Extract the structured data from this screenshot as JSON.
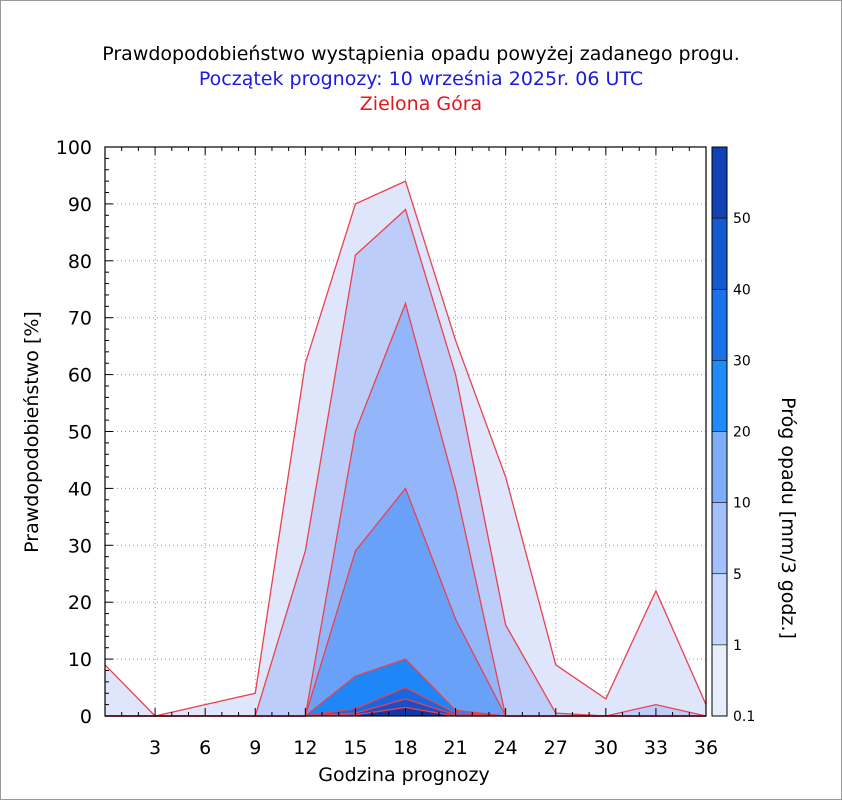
{
  "chart_data": {
    "type": "area",
    "title": "Prawdopodobieństwo wystąpienia opadu powyżej zadanego progu.",
    "subtitle": "Początek prognozy: 10 września 2025r. 06 UTC",
    "location": "Zielona Góra",
    "xlabel": "Godzina prognozy",
    "ylabel": "Prawdopodobieństwo [%]",
    "colorbar_label": "Próg opadu [mm/3 godz.]",
    "xlim": [
      0,
      36
    ],
    "ylim": [
      0,
      100
    ],
    "x_ticks": [
      3,
      6,
      9,
      12,
      15,
      18,
      21,
      24,
      27,
      30,
      33,
      36
    ],
    "y_ticks": [
      0,
      10,
      20,
      30,
      40,
      50,
      60,
      70,
      80,
      90,
      100
    ],
    "x": [
      0,
      3,
      6,
      9,
      12,
      15,
      18,
      21,
      24,
      27,
      30,
      33,
      36
    ],
    "series": [
      {
        "name": "0.1",
        "color": "#dfe6fb",
        "values": [
          9,
          0,
          2,
          4,
          62,
          90,
          94,
          66,
          42,
          9,
          3,
          22,
          2
        ]
      },
      {
        "name": "1",
        "color": "#bccdfa",
        "values": [
          0,
          0,
          0,
          0,
          29,
          81,
          89,
          60,
          16,
          0.5,
          0,
          2,
          0
        ]
      },
      {
        "name": "5",
        "color": "#93b5fa",
        "values": [
          0,
          0,
          0,
          0,
          0,
          50,
          72.5,
          40,
          0,
          0,
          0,
          0,
          0
        ]
      },
      {
        "name": "10",
        "color": "#69a1f9",
        "values": [
          0,
          0,
          0,
          0,
          0,
          29,
          40,
          17,
          0,
          0,
          0,
          0,
          0
        ]
      },
      {
        "name": "20",
        "color": "#1e86f6",
        "values": [
          0,
          0,
          0,
          0,
          0,
          7,
          10,
          1,
          0,
          0,
          0,
          0,
          0
        ]
      },
      {
        "name": "30",
        "color": "#1a66e0",
        "values": [
          0,
          0,
          0,
          0,
          0,
          1.3,
          5,
          0.5,
          0,
          0,
          0,
          0,
          0
        ]
      },
      {
        "name": "40",
        "color": "#1a4ec4",
        "values": [
          0,
          0,
          0,
          0,
          0,
          0.5,
          3,
          0.2,
          0,
          0,
          0,
          0,
          0
        ]
      },
      {
        "name": "50",
        "color": "#1235a8",
        "values": [
          0,
          0,
          0,
          0,
          0,
          0.2,
          1.5,
          0,
          0,
          0,
          0,
          0,
          0
        ]
      }
    ],
    "colorbar": {
      "labels": [
        "0.1",
        "1",
        "5",
        "10",
        "20",
        "30",
        "40",
        "50"
      ],
      "colors": [
        "#e8eefc",
        "#c7d6fb",
        "#a4c0fa",
        "#7eacf9",
        "#1e8cf8",
        "#1a72e8",
        "#1558d0",
        "#1141b6",
        "#0d2e96"
      ]
    },
    "outline_color": "#e8424f",
    "grid": true,
    "legend": "colorbar-right"
  }
}
